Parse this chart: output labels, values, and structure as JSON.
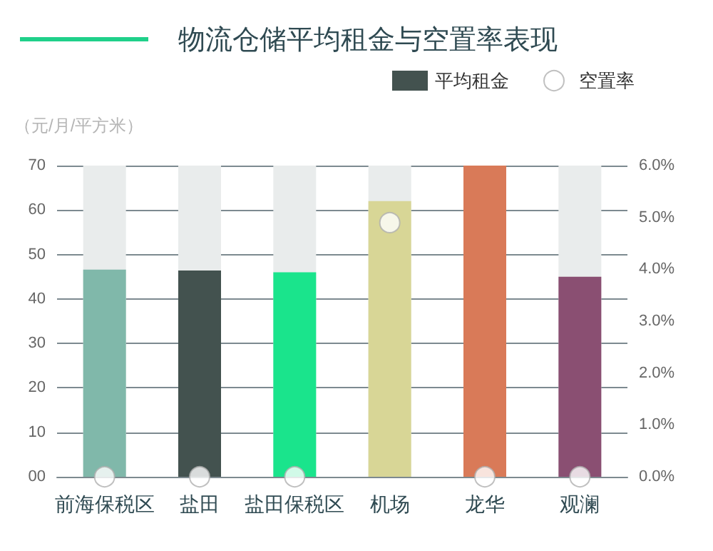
{
  "chart_data": {
    "type": "bar",
    "title": "物流仓储平均租金与空置率表现",
    "ylabel": "（元/月/平方米）",
    "categories": [
      "前海保税区",
      "盐田",
      "盐田保税区",
      "机场",
      "龙华",
      "观澜"
    ],
    "series": [
      {
        "name": "平均租金",
        "color": "#43524f",
        "colors": [
          "#80b8aa",
          "#43524f",
          "#1ae48c",
          "#d8d696",
          "#d97a58",
          "#8a4f72"
        ],
        "values": [
          46.6,
          46.4,
          46.0,
          62.0,
          70,
          45.0
        ]
      },
      {
        "name": "空置率",
        "type": "scatter",
        "axis": "y2",
        "color": "#ffffff",
        "values": [
          0,
          0,
          0,
          4.9,
          0,
          0
        ]
      }
    ],
    "ylim": [
      0,
      70
    ],
    "yticks": [
      {
        "value": 0,
        "label": "00"
      },
      10,
      20,
      30,
      40,
      50,
      60,
      70
    ],
    "y2lim": [
      0,
      6
    ],
    "y2ticks": [
      {
        "value": 0,
        "label": "0.0%"
      },
      {
        "value": 1,
        "label": "1.0%"
      },
      {
        "value": 2,
        "label": "2.0%"
      },
      {
        "value": 3,
        "label": "3.0%"
      },
      {
        "value": 4,
        "label": "4.0%"
      },
      {
        "value": 5,
        "label": "5.0%"
      },
      {
        "value": 6,
        "label": "6.0%"
      }
    ],
    "grid": "y",
    "legend": "top right",
    "marker": "circle"
  }
}
